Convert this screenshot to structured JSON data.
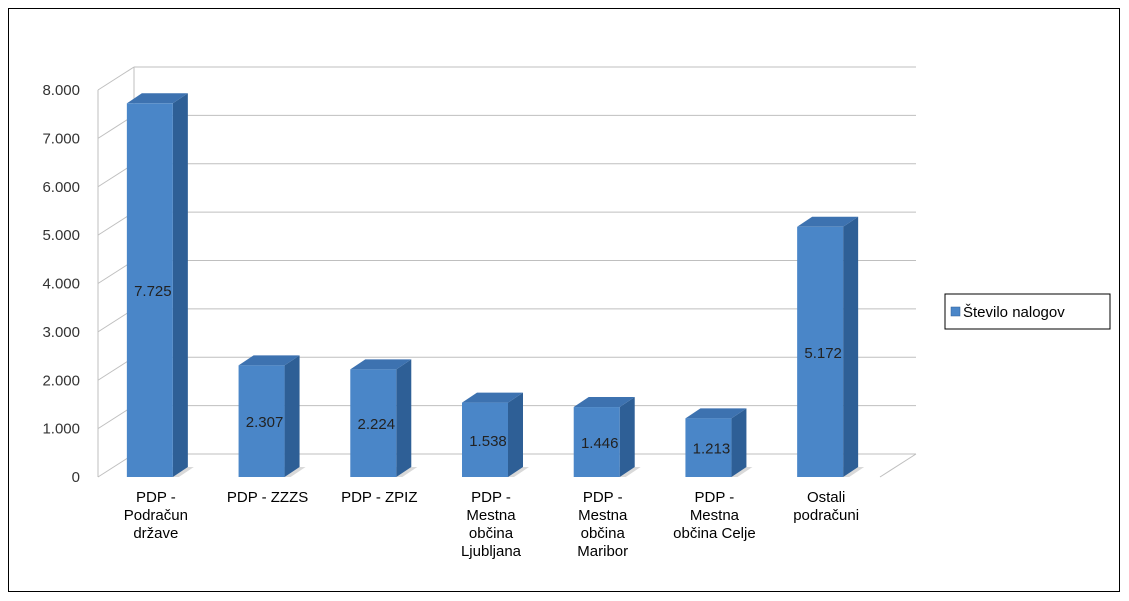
{
  "chart_data": {
    "type": "bar",
    "title": "",
    "xlabel": "",
    "ylabel": "",
    "categories": [
      [
        "PDP -",
        "Podračun",
        "države"
      ],
      [
        "PDP - ZZZS"
      ],
      [
        "PDP - ZPIZ"
      ],
      [
        "PDP -",
        "Mestna",
        "občina",
        "Ljubljana"
      ],
      [
        "PDP -",
        "Mestna",
        "občina",
        "Maribor"
      ],
      [
        "PDP -",
        "Mestna",
        "občina Celje"
      ],
      [
        "Ostali",
        "podračuni"
      ]
    ],
    "series": [
      {
        "name": "Število nalogov",
        "values": [
          7725,
          2307,
          2224,
          1538,
          1446,
          1213,
          5172
        ],
        "data_labels": [
          "7.725",
          "2.307",
          "2.224",
          "1.538",
          "1.446",
          "1.213",
          "5.172"
        ],
        "color": "#4a86c8"
      }
    ],
    "ylim": [
      0,
      8000
    ],
    "y_ticks": [
      0,
      1000,
      2000,
      3000,
      4000,
      5000,
      6000,
      7000,
      8000
    ],
    "y_tick_labels": [
      "0",
      "1.000",
      "2.000",
      "3.000",
      "4.000",
      "5.000",
      "6.000",
      "7.000",
      "8.000"
    ],
    "grid": true,
    "style": "3d-column",
    "legend": {
      "position": "right",
      "entries": [
        "Število nalogov"
      ]
    }
  }
}
